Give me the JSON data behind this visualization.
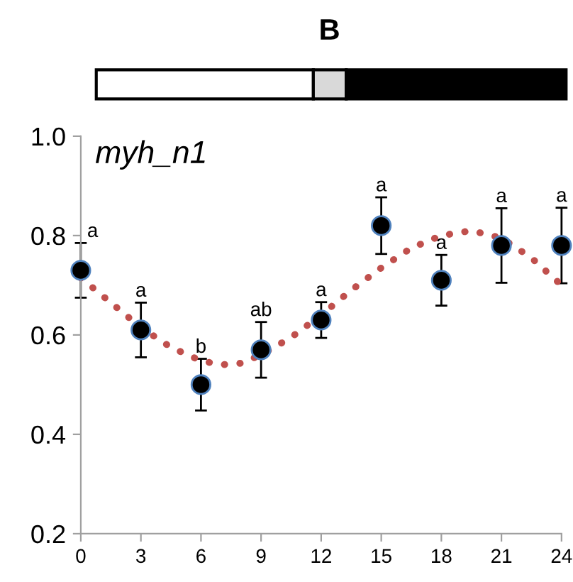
{
  "chart_data": {
    "type": "scatter",
    "title": "B",
    "x": [
      0,
      3,
      6,
      9,
      12,
      15,
      18,
      21,
      24
    ],
    "series": [
      {
        "color": "#000000",
        "marker": "circle",
        "values": [
          0.73,
          0.61,
          0.5,
          0.57,
          0.63,
          0.82,
          0.71,
          0.78,
          0.78
        ],
        "errors": [
          0.055,
          0.055,
          0.052,
          0.056,
          0.036,
          0.057,
          0.051,
          0.075,
          0.076
        ]
      },
      {
        "type": "line",
        "color": "#c0504d",
        "marker": "none",
        "line_style": "dotted",
        "x": [
          0,
          1.5,
          3,
          4.5,
          6,
          7,
          8,
          9,
          10.5,
          12,
          13.5,
          15,
          16.5,
          18,
          19.5,
          21,
          22.5,
          24
        ],
        "values": [
          0.715,
          0.665,
          0.615,
          0.575,
          0.548,
          0.54,
          0.543,
          0.56,
          0.595,
          0.64,
          0.69,
          0.735,
          0.775,
          0.8,
          0.81,
          0.795,
          0.755,
          0.7
        ]
      }
    ],
    "xlim": [
      0,
      24
    ],
    "xticks": [
      0,
      3,
      6,
      9,
      12,
      15,
      18,
      21,
      24
    ],
    "ylim": [
      0.2,
      1.0
    ],
    "yticks": [
      {
        "value": 0.2,
        "label": "0.2"
      },
      {
        "value": 0.4,
        "label": "0.4"
      },
      {
        "value": 0.6,
        "label": "0.6"
      },
      {
        "value": 0.8,
        "label": "0.8"
      },
      {
        "value": 1.0,
        "label": "1.0"
      }
    ],
    "grid": false,
    "annotations": [
      "myh_n1",
      {
        "text": "a",
        "x": 0,
        "y": 0.785
      },
      {
        "text": "a",
        "x": 3,
        "y": 0.665
      },
      {
        "text": "b",
        "x": 6,
        "y": 0.552
      },
      {
        "text": "ab",
        "x": 9,
        "y": 0.626
      },
      {
        "text": "a",
        "x": 12,
        "y": 0.666
      },
      {
        "text": "a",
        "x": 15,
        "y": 0.877
      },
      {
        "text": "a",
        "x": 18,
        "y": 0.761
      },
      {
        "text": "a",
        "x": 21,
        "y": 0.855
      },
      {
        "text": "a",
        "x": 24,
        "y": 0.856
      }
    ]
  }
}
